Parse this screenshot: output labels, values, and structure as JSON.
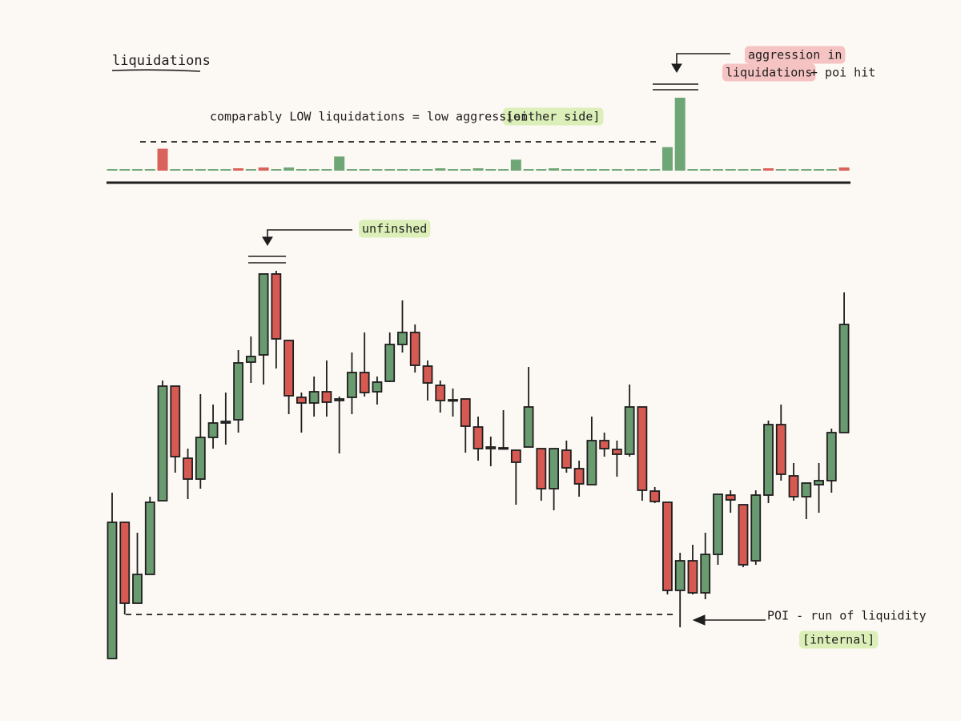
{
  "chart_data": [
    {
      "type": "bar",
      "title": "liquidations",
      "values": [
        2,
        2,
        2,
        2,
        28,
        2,
        2,
        2,
        2,
        2,
        3,
        2,
        4,
        2,
        4,
        2,
        2,
        2,
        18,
        2,
        2,
        2,
        2,
        2,
        2,
        2,
        3,
        2,
        2,
        3,
        2,
        2,
        14,
        2,
        2,
        3,
        2,
        2,
        2,
        2,
        2,
        2,
        2,
        2,
        30,
        93,
        2,
        2,
        2,
        2,
        2,
        2,
        3,
        2,
        2,
        2,
        2,
        2,
        4
      ],
      "colors": [
        "#6fa676",
        "#6fa676",
        "#6fa676",
        "#6fa676",
        "#d9625a",
        "#6fa676",
        "#6fa676",
        "#6fa676",
        "#6fa676",
        "#6fa676",
        "#d9625a",
        "#6fa676",
        "#d9625a",
        "#6fa676",
        "#6fa676",
        "#6fa676",
        "#6fa676",
        "#6fa676",
        "#6fa676",
        "#6fa676",
        "#6fa676",
        "#6fa676",
        "#6fa676",
        "#6fa676",
        "#6fa676",
        "#6fa676",
        "#6fa676",
        "#6fa676",
        "#6fa676",
        "#6fa676",
        "#6fa676",
        "#6fa676",
        "#6fa676",
        "#6fa676",
        "#6fa676",
        "#6fa676",
        "#6fa676",
        "#6fa676",
        "#6fa676",
        "#6fa676",
        "#6fa676",
        "#6fa676",
        "#6fa676",
        "#6fa676",
        "#6fa676",
        "#6fa676",
        "#6fa676",
        "#6fa676",
        "#6fa676",
        "#6fa676",
        "#6fa676",
        "#6fa676",
        "#d9625a",
        "#6fa676",
        "#6fa676",
        "#6fa676",
        "#6fa676",
        "#6fa676",
        "#d9625a"
      ],
      "ylim": [
        0,
        95
      ]
    },
    {
      "type": "candlestick",
      "up_color": "#6a9a6f",
      "down_color": "#d65a52",
      "open": [
        5.6,
        39.6,
        19.4,
        26.6,
        45,
        73.6,
        55.6,
        50.4,
        60.8,
        64.4,
        65.2,
        79.6,
        81.4,
        101.6,
        85,
        70.8,
        69.4,
        72.2,
        70,
        70.8,
        77,
        72.2,
        74.8,
        84,
        87,
        78.6,
        73.8,
        70.2,
        70.4,
        63.4,
        58.4,
        58.2,
        57.6,
        58.4,
        58,
        48,
        57.6,
        53,
        49,
        60,
        57.8,
        56.6,
        68.4,
        47.4,
        44.6,
        22.6,
        30,
        22,
        31.6,
        46.4,
        44,
        30,
        46.4,
        64,
        51.2,
        46,
        49,
        50,
        62
      ],
      "high": [
        47,
        39.6,
        37,
        46,
        75,
        73.6,
        58,
        71.6,
        69,
        72,
        82.6,
        86,
        101.6,
        102.4,
        85,
        72,
        76,
        80,
        71,
        82,
        87,
        76,
        87,
        95,
        89,
        80,
        75,
        73,
        70.4,
        66,
        61,
        67.6,
        57.6,
        78.4,
        58,
        58,
        60,
        55,
        66,
        62,
        60,
        74,
        68.4,
        48.4,
        44.6,
        32,
        34,
        37,
        46.6,
        47.6,
        44,
        47.6,
        65,
        69,
        54.4,
        49.4,
        54.4,
        63,
        97
      ],
      "low": [
        5.6,
        16.6,
        19.4,
        26.6,
        45,
        52,
        45.4,
        48,
        58,
        59,
        62,
        74.4,
        74,
        78,
        66.6,
        62,
        66,
        66,
        56.8,
        66.6,
        71,
        69,
        74.6,
        82,
        77,
        70,
        67,
        66,
        57,
        55,
        53.6,
        58,
        44,
        58.4,
        45,
        42.6,
        52,
        46,
        49,
        56,
        51,
        56,
        45,
        44.4,
        21.6,
        13.4,
        21.6,
        20.4,
        29,
        42,
        28.4,
        29,
        44.4,
        50,
        45,
        40.4,
        42,
        47,
        62
      ],
      "close": [
        39.6,
        19.4,
        26.6,
        44.6,
        73.6,
        56,
        50.4,
        60.8,
        64.4,
        64.8,
        79.4,
        81,
        101.6,
        85.4,
        71.2,
        69.4,
        72.2,
        69.6,
        70.4,
        77,
        72,
        74.6,
        84,
        87,
        78.8,
        74.4,
        70,
        70,
        63.6,
        58,
        58,
        58,
        54.6,
        68.4,
        48,
        58,
        53.2,
        49.2,
        60,
        58,
        56.6,
        68.4,
        47.6,
        44.8,
        22.6,
        30,
        22,
        31.6,
        46.6,
        45.2,
        29,
        46.4,
        64,
        51.6,
        46,
        49.4,
        50,
        62,
        89
      ],
      "ylim": [
        0,
        110
      ]
    }
  ],
  "annotations": {
    "low_note": "comparably LOW liquidations = low aggression",
    "low_note_tag": "[either side]",
    "aggression_line1": "aggression in",
    "aggression_line2": "liquidations",
    "aggression_suffix": "+ poi hit",
    "unfinished": "unfinshed",
    "poi": "POI - run of liquidity",
    "poi_tag": "[internal]"
  }
}
